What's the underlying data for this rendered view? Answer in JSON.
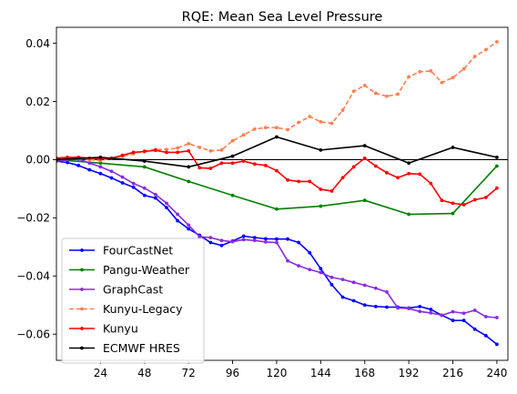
{
  "chart_data": {
    "type": "line",
    "title": "RQE: Mean Sea Level Pressure",
    "xlabel": "",
    "ylabel": "",
    "xlim": [
      0,
      246
    ],
    "ylim": [
      -0.069,
      0.0455
    ],
    "xticks": [
      24,
      48,
      72,
      96,
      120,
      144,
      168,
      192,
      216,
      240
    ],
    "yticks": [
      -0.06,
      -0.04,
      -0.02,
      0.0,
      0.02,
      0.04
    ],
    "ytick_labels": [
      "−0.06",
      "−0.04",
      "−0.02",
      "0.00",
      "0.02",
      "0.04"
    ],
    "reference_line_y": 0,
    "legend_position": "lower-left",
    "grid": false,
    "series": [
      {
        "name": "FourCastNet",
        "color": "#0000ff",
        "style": "solid",
        "x": [
          0,
          6,
          12,
          18,
          24,
          30,
          36,
          42,
          48,
          54,
          60,
          66,
          72,
          78,
          84,
          90,
          96,
          102,
          108,
          114,
          120,
          126,
          132,
          138,
          144,
          150,
          156,
          162,
          168,
          174,
          180,
          186,
          192,
          198,
          204,
          210,
          216,
          222,
          228,
          234,
          240
        ],
        "y": [
          -0.0005,
          -0.001,
          -0.002,
          -0.0035,
          -0.0048,
          -0.0063,
          -0.008,
          -0.0095,
          -0.0123,
          -0.0132,
          -0.0165,
          -0.021,
          -0.0238,
          -0.026,
          -0.0285,
          -0.0295,
          -0.028,
          -0.0263,
          -0.0268,
          -0.0272,
          -0.0273,
          -0.0273,
          -0.0285,
          -0.032,
          -0.0375,
          -0.043,
          -0.0473,
          -0.0485,
          -0.05,
          -0.0505,
          -0.0507,
          -0.0507,
          -0.051,
          -0.0505,
          -0.0515,
          -0.0535,
          -0.0553,
          -0.0553,
          -0.0583,
          -0.0605,
          -0.0635
        ]
      },
      {
        "name": "Pangu-Weather",
        "color": "#008000",
        "style": "solid",
        "x": [
          0,
          24,
          48,
          72,
          96,
          120,
          144,
          168,
          192,
          216,
          240
        ],
        "y": [
          0.0,
          -0.0012,
          -0.0025,
          -0.0075,
          -0.0123,
          -0.017,
          -0.016,
          -0.014,
          -0.0188,
          -0.0185,
          -0.0022
        ]
      },
      {
        "name": "GraphCast",
        "color": "#8a2be2",
        "style": "solid",
        "x": [
          0,
          6,
          12,
          18,
          24,
          30,
          36,
          42,
          48,
          54,
          60,
          66,
          72,
          78,
          84,
          90,
          96,
          102,
          108,
          114,
          120,
          126,
          132,
          138,
          144,
          150,
          156,
          162,
          168,
          174,
          180,
          186,
          192,
          198,
          204,
          210,
          216,
          222,
          228,
          234,
          240
        ],
        "y": [
          -0.0005,
          0.0,
          0.0002,
          -0.0012,
          -0.0025,
          -0.004,
          -0.006,
          -0.0082,
          -0.0098,
          -0.012,
          -0.015,
          -0.0188,
          -0.0225,
          -0.0265,
          -0.0268,
          -0.0278,
          -0.0282,
          -0.0275,
          -0.0278,
          -0.0283,
          -0.0285,
          -0.0348,
          -0.0365,
          -0.0378,
          -0.0388,
          -0.0405,
          -0.0412,
          -0.0422,
          -0.0432,
          -0.0442,
          -0.0455,
          -0.051,
          -0.0512,
          -0.0522,
          -0.0527,
          -0.0535,
          -0.0523,
          -0.0528,
          -0.0518,
          -0.054,
          -0.0543
        ]
      },
      {
        "name": "Kunyu-Legacy",
        "color": "#ff7f50",
        "style": "dashed",
        "x": [
          0,
          6,
          12,
          18,
          24,
          30,
          36,
          42,
          48,
          54,
          60,
          66,
          72,
          78,
          84,
          90,
          96,
          102,
          108,
          114,
          120,
          126,
          132,
          138,
          144,
          150,
          156,
          162,
          168,
          174,
          180,
          186,
          192,
          198,
          204,
          210,
          216,
          222,
          228,
          234,
          240
        ],
        "y": [
          0.0,
          0.0005,
          0.0008,
          0.0,
          -0.0003,
          0.0005,
          0.0012,
          0.002,
          0.003,
          0.0035,
          0.0035,
          0.004,
          0.0055,
          0.0042,
          0.003,
          0.0033,
          0.0065,
          0.0085,
          0.0105,
          0.011,
          0.011,
          0.0103,
          0.0128,
          0.0148,
          0.013,
          0.0125,
          0.017,
          0.0235,
          0.0255,
          0.0228,
          0.0218,
          0.0225,
          0.0285,
          0.0302,
          0.0305,
          0.0265,
          0.0282,
          0.0312,
          0.0355,
          0.0378,
          0.0405
        ]
      },
      {
        "name": "Kunyu",
        "color": "#ff0000",
        "style": "solid",
        "x": [
          0,
          6,
          12,
          18,
          24,
          30,
          36,
          42,
          48,
          54,
          60,
          66,
          72,
          78,
          84,
          90,
          96,
          102,
          108,
          114,
          120,
          126,
          132,
          138,
          144,
          150,
          156,
          162,
          168,
          174,
          180,
          186,
          192,
          198,
          204,
          210,
          216,
          222,
          228,
          234,
          240
        ],
        "y": [
          0.0005,
          0.0008,
          0.0008,
          0.0005,
          0.0003,
          0.0005,
          0.0015,
          0.0025,
          0.0028,
          0.0032,
          0.0025,
          0.0025,
          0.003,
          -0.0028,
          -0.003,
          -0.0012,
          -0.0012,
          -0.0005,
          -0.0015,
          -0.002,
          -0.0038,
          -0.007,
          -0.0075,
          -0.0075,
          -0.0102,
          -0.0108,
          -0.0062,
          -0.0025,
          0.0005,
          -0.0022,
          -0.0045,
          -0.0062,
          -0.0048,
          -0.005,
          -0.0082,
          -0.014,
          -0.015,
          -0.0155,
          -0.0138,
          -0.013,
          -0.0098
        ]
      },
      {
        "name": "ECMWF HRES",
        "color": "#000000",
        "style": "solid",
        "x": [
          0,
          24,
          48,
          72,
          96,
          120,
          144,
          168,
          192,
          216,
          240
        ],
        "y": [
          0.0,
          0.0008,
          -0.0005,
          -0.0025,
          0.0012,
          0.0078,
          0.0033,
          0.0048,
          -0.0012,
          0.0042,
          0.0008
        ]
      }
    ]
  }
}
